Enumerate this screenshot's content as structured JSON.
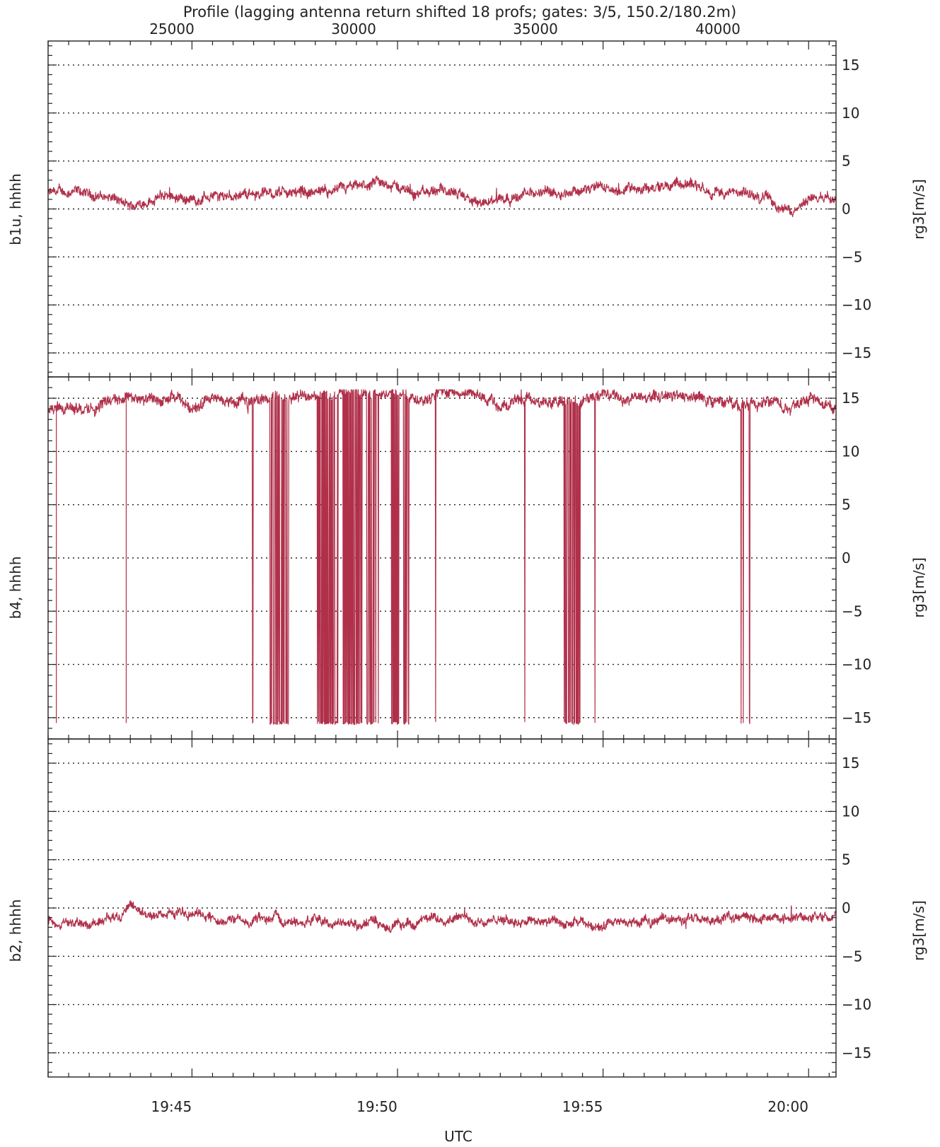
{
  "chart_data": {
    "type": "line",
    "title": "Profile (lagging antenna return shifted 18 profs; gates: 3/5, 150.2/180.2m)",
    "xlabel": "UTC",
    "x_time_ticks": [
      "19:45",
      "19:50",
      "19:55",
      "20:00"
    ],
    "x_time_range": [
      "19:41:30",
      "20:00:40"
    ],
    "top_axis_ticks": [
      "25000",
      "30000",
      "35000",
      "40000"
    ],
    "right_ylabel": "rg3[m/s]",
    "grid": "dotted horizontal at each labeled tick",
    "line_color": "#b0304a",
    "panels": [
      {
        "ylabel": "b1u, hhhh",
        "ylim": [
          -17.5,
          17.5
        ],
        "yticks": [
          15,
          10,
          5,
          0,
          -5,
          -10,
          -15
        ],
        "ytick_labels": [
          "15",
          "10",
          "5",
          "0",
          "−5",
          "−10",
          "−15"
        ],
        "series": {
          "t": [
            0,
            0.5,
            1,
            1.5,
            2,
            2.5,
            3,
            3.5,
            4,
            4.5,
            5,
            5.5,
            6,
            6.5,
            7,
            7.5,
            8,
            8.5,
            9,
            9.5,
            10,
            10.5,
            11,
            11.5,
            12,
            12.5,
            13,
            13.5,
            14,
            14.5,
            15,
            15.5,
            16,
            16.5,
            17,
            17.5,
            18,
            18.5,
            19,
            19.17
          ],
          "v": [
            1.6,
            1.8,
            1.5,
            1.2,
            0.2,
            1.0,
            1.5,
            0.9,
            1.3,
            1.5,
            1.6,
            1.7,
            1.8,
            1.7,
            1.9,
            2.2,
            2.6,
            2.3,
            1.6,
            1.9,
            1.3,
            0.5,
            1.2,
            1.4,
            1.7,
            1.9,
            2.0,
            2.2,
            2.0,
            2.2,
            2.4,
            2.6,
            2.1,
            1.6,
            1.5,
            1.2,
            -0.4,
            0.9,
            1.4,
            1.5
          ],
          "noise": 0.8
        }
      },
      {
        "ylabel": "b4, hhhh",
        "ylim": [
          -17,
          17
        ],
        "yticks": [
          15,
          10,
          5,
          0,
          -5,
          -10,
          -15
        ],
        "ytick_labels": [
          "15",
          "10",
          "5",
          "0",
          "−5",
          "−10",
          "−15"
        ],
        "series": {
          "t": [
            0,
            0.5,
            1,
            1.5,
            2,
            2.5,
            3,
            3.5,
            4,
            4.5,
            5,
            5.5,
            6,
            6.5,
            7,
            7.5,
            8,
            8.5,
            9,
            9.5,
            10,
            10.5,
            11,
            11.5,
            12,
            12.5,
            13,
            13.5,
            14,
            14.5,
            15,
            15.5,
            16,
            16.5,
            17,
            17.5,
            18,
            18.5,
            19,
            19.17
          ],
          "v": [
            14.0,
            14.5,
            13.8,
            15.0,
            15.2,
            14.8,
            15.0,
            14.2,
            14.8,
            14.6,
            15.0,
            15.2,
            15.4,
            15.2,
            15.4,
            15.6,
            15.2,
            15.4,
            15.0,
            15.6,
            15.5,
            15.2,
            14.2,
            14.8,
            14.5,
            14.6,
            14.8,
            15.3,
            15.0,
            15.2,
            15.3,
            15.4,
            14.8,
            14.5,
            14.2,
            14.8,
            14.2,
            15.2,
            14.4,
            14.2
          ],
          "noise": 0.8,
          "dropout_value": -15.5,
          "dropout_ranges": [
            [
              4.85,
              4.87
            ],
            [
              4.97,
              4.99
            ],
            [
              5.35,
              5.85
            ],
            [
              6.55,
              7.1
            ],
            [
              7.15,
              7.65
            ],
            [
              7.75,
              8.05
            ],
            [
              8.35,
              8.55
            ],
            [
              8.65,
              8.78
            ],
            [
              9.42,
              9.44
            ],
            [
              11.58,
              11.6
            ],
            [
              12.35,
              12.37
            ],
            [
              12.42,
              12.45
            ],
            [
              12.55,
              12.95
            ],
            [
              13.3,
              13.32
            ],
            [
              16.85,
              16.95
            ],
            [
              17.05,
              17.07
            ]
          ]
        }
      },
      {
        "ylabel": "b2, hhhh",
        "ylim": [
          -17.5,
          17.5
        ],
        "yticks": [
          15,
          10,
          5,
          0,
          -5,
          -10,
          -15
        ],
        "ytick_labels": [
          "15",
          "10",
          "5",
          "0",
          "−5",
          "−10",
          "−15"
        ],
        "series": {
          "t": [
            0,
            0.5,
            1,
            1.5,
            2,
            2.5,
            3,
            3.5,
            4,
            4.5,
            5,
            5.5,
            6,
            6.5,
            7,
            7.5,
            8,
            8.5,
            9,
            9.5,
            10,
            10.5,
            11,
            11.5,
            12,
            12.5,
            13,
            13.5,
            14,
            14.5,
            15,
            15.5,
            16,
            16.5,
            17,
            17.5,
            18,
            18.5,
            19,
            19.17
          ],
          "v": [
            -1.2,
            -1.5,
            -1.8,
            -0.8,
            -0.2,
            -0.8,
            -0.5,
            -0.4,
            -1.0,
            -1.2,
            -1.3,
            -1.1,
            -1.4,
            -1.2,
            -1.5,
            -1.6,
            -1.5,
            -1.8,
            -1.5,
            -1.0,
            -0.9,
            -1.3,
            -1.4,
            -1.2,
            -1.3,
            -1.5,
            -1.7,
            -1.8,
            -1.6,
            -1.4,
            -1.0,
            -1.2,
            -1.3,
            -1.1,
            -0.8,
            -1.0,
            -1.2,
            -0.8,
            -0.9,
            -0.6
          ],
          "noise": 0.7
        }
      }
    ]
  }
}
